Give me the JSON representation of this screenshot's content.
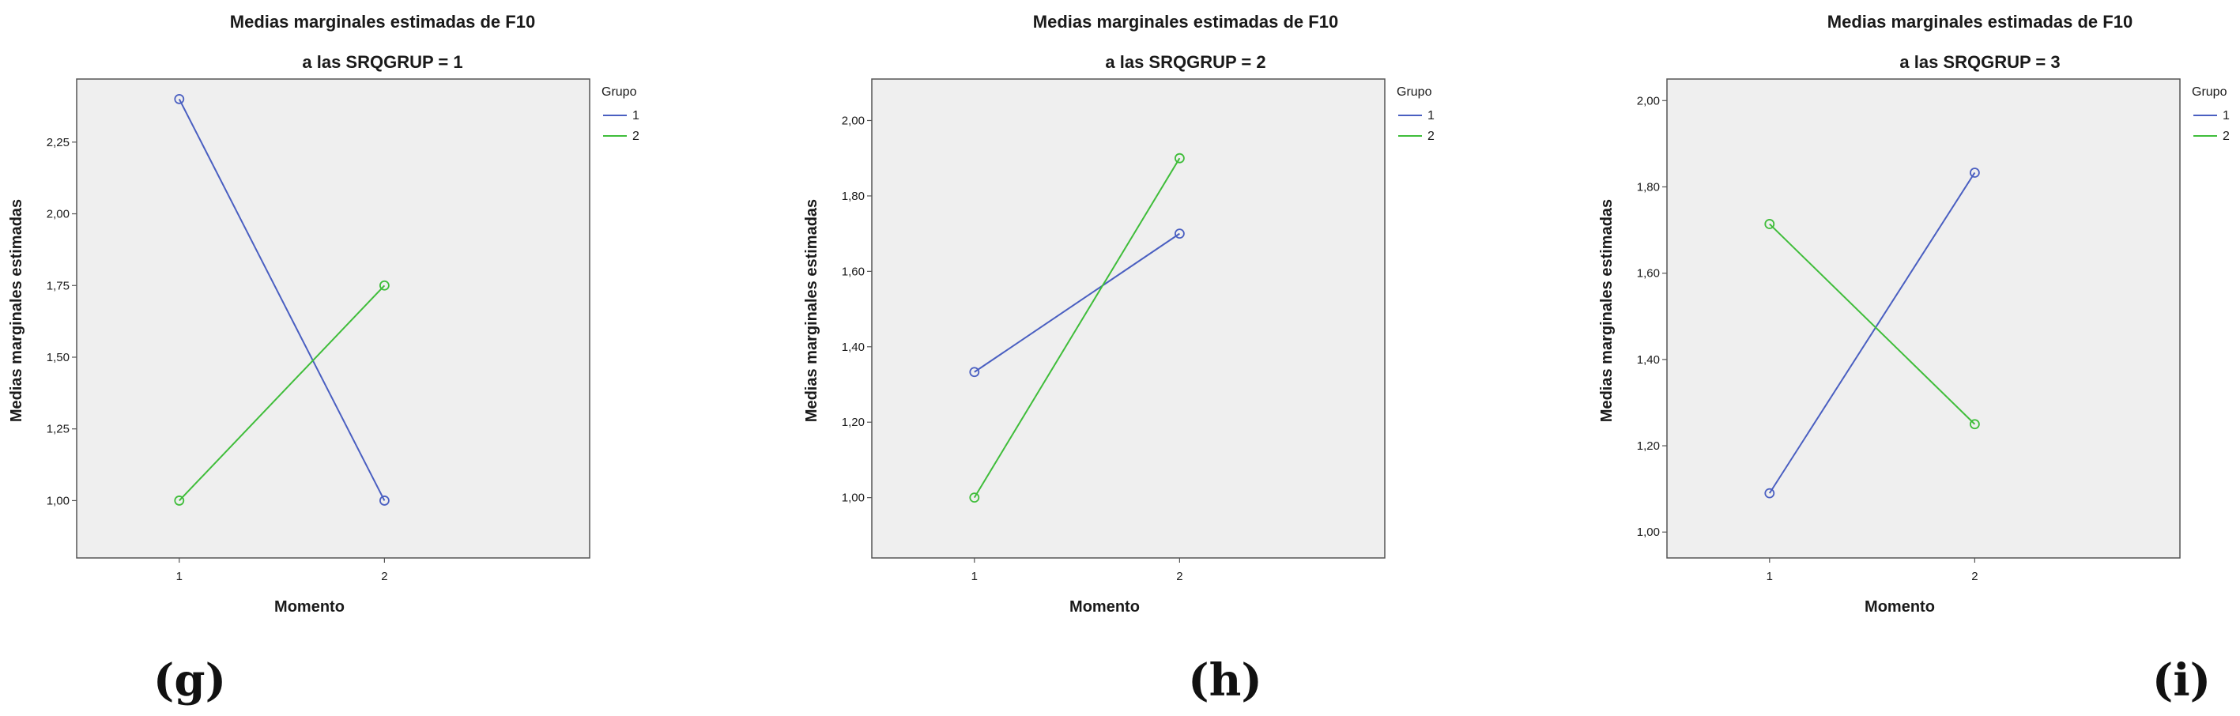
{
  "colors": {
    "series_1": "#4a5fc1",
    "series_2": "#3fbd3a",
    "plot_bg": "#efefef",
    "axis": "#555555"
  },
  "chart_data": [
    {
      "type": "line",
      "panel_label": "(g)",
      "title": "Medias marginales estimadas de F10",
      "subtitle": "a las SRQGRUP = 1",
      "xlabel": "Momento",
      "ylabel": "Medias marginales estimadas",
      "categories": [
        "1",
        "2"
      ],
      "ylim": [
        0.8,
        2.47
      ],
      "yticks": [
        1.0,
        1.25,
        1.5,
        1.75,
        2.0,
        2.25
      ],
      "ytick_labels": [
        "1,00",
        "1,25",
        "1,50",
        "1,75",
        "2,00",
        "2,25"
      ],
      "legend_title": "Grupo",
      "legend_position": "right",
      "series": [
        {
          "name": "1",
          "values": [
            2.4,
            1.0
          ]
        },
        {
          "name": "2",
          "values": [
            1.0,
            1.75
          ]
        }
      ]
    },
    {
      "type": "line",
      "panel_label": "(h)",
      "title": "Medias marginales estimadas de F10",
      "subtitle": "a las SRQGRUP = 2",
      "xlabel": "Momento",
      "ylabel": "Medias marginales estimadas",
      "categories": [
        "1",
        "2"
      ],
      "ylim": [
        0.84,
        2.11
      ],
      "yticks": [
        1.0,
        1.2,
        1.4,
        1.6,
        1.8,
        2.0
      ],
      "ytick_labels": [
        "1,00",
        "1,20",
        "1,40",
        "1,60",
        "1,80",
        "2,00"
      ],
      "legend_title": "Grupo",
      "legend_position": "right",
      "series": [
        {
          "name": "1",
          "values": [
            1.333,
            1.7
          ]
        },
        {
          "name": "2",
          "values": [
            1.0,
            1.9
          ]
        }
      ]
    },
    {
      "type": "line",
      "panel_label": "(i)",
      "title": "Medias marginales estimadas de F10",
      "subtitle": "a las SRQGRUP = 3",
      "xlabel": "Momento",
      "ylabel": "Medias marginales estimadas",
      "categories": [
        "1",
        "2"
      ],
      "ylim": [
        0.94,
        2.05
      ],
      "yticks": [
        1.0,
        1.2,
        1.4,
        1.6,
        1.8,
        2.0
      ],
      "ytick_labels": [
        "1,00",
        "1,20",
        "1,40",
        "1,60",
        "1,80",
        "2,00"
      ],
      "legend_title": "Grupo",
      "legend_position": "right",
      "series": [
        {
          "name": "1",
          "values": [
            1.09,
            1.833
          ]
        },
        {
          "name": "2",
          "values": [
            1.714,
            1.25
          ]
        }
      ]
    }
  ]
}
